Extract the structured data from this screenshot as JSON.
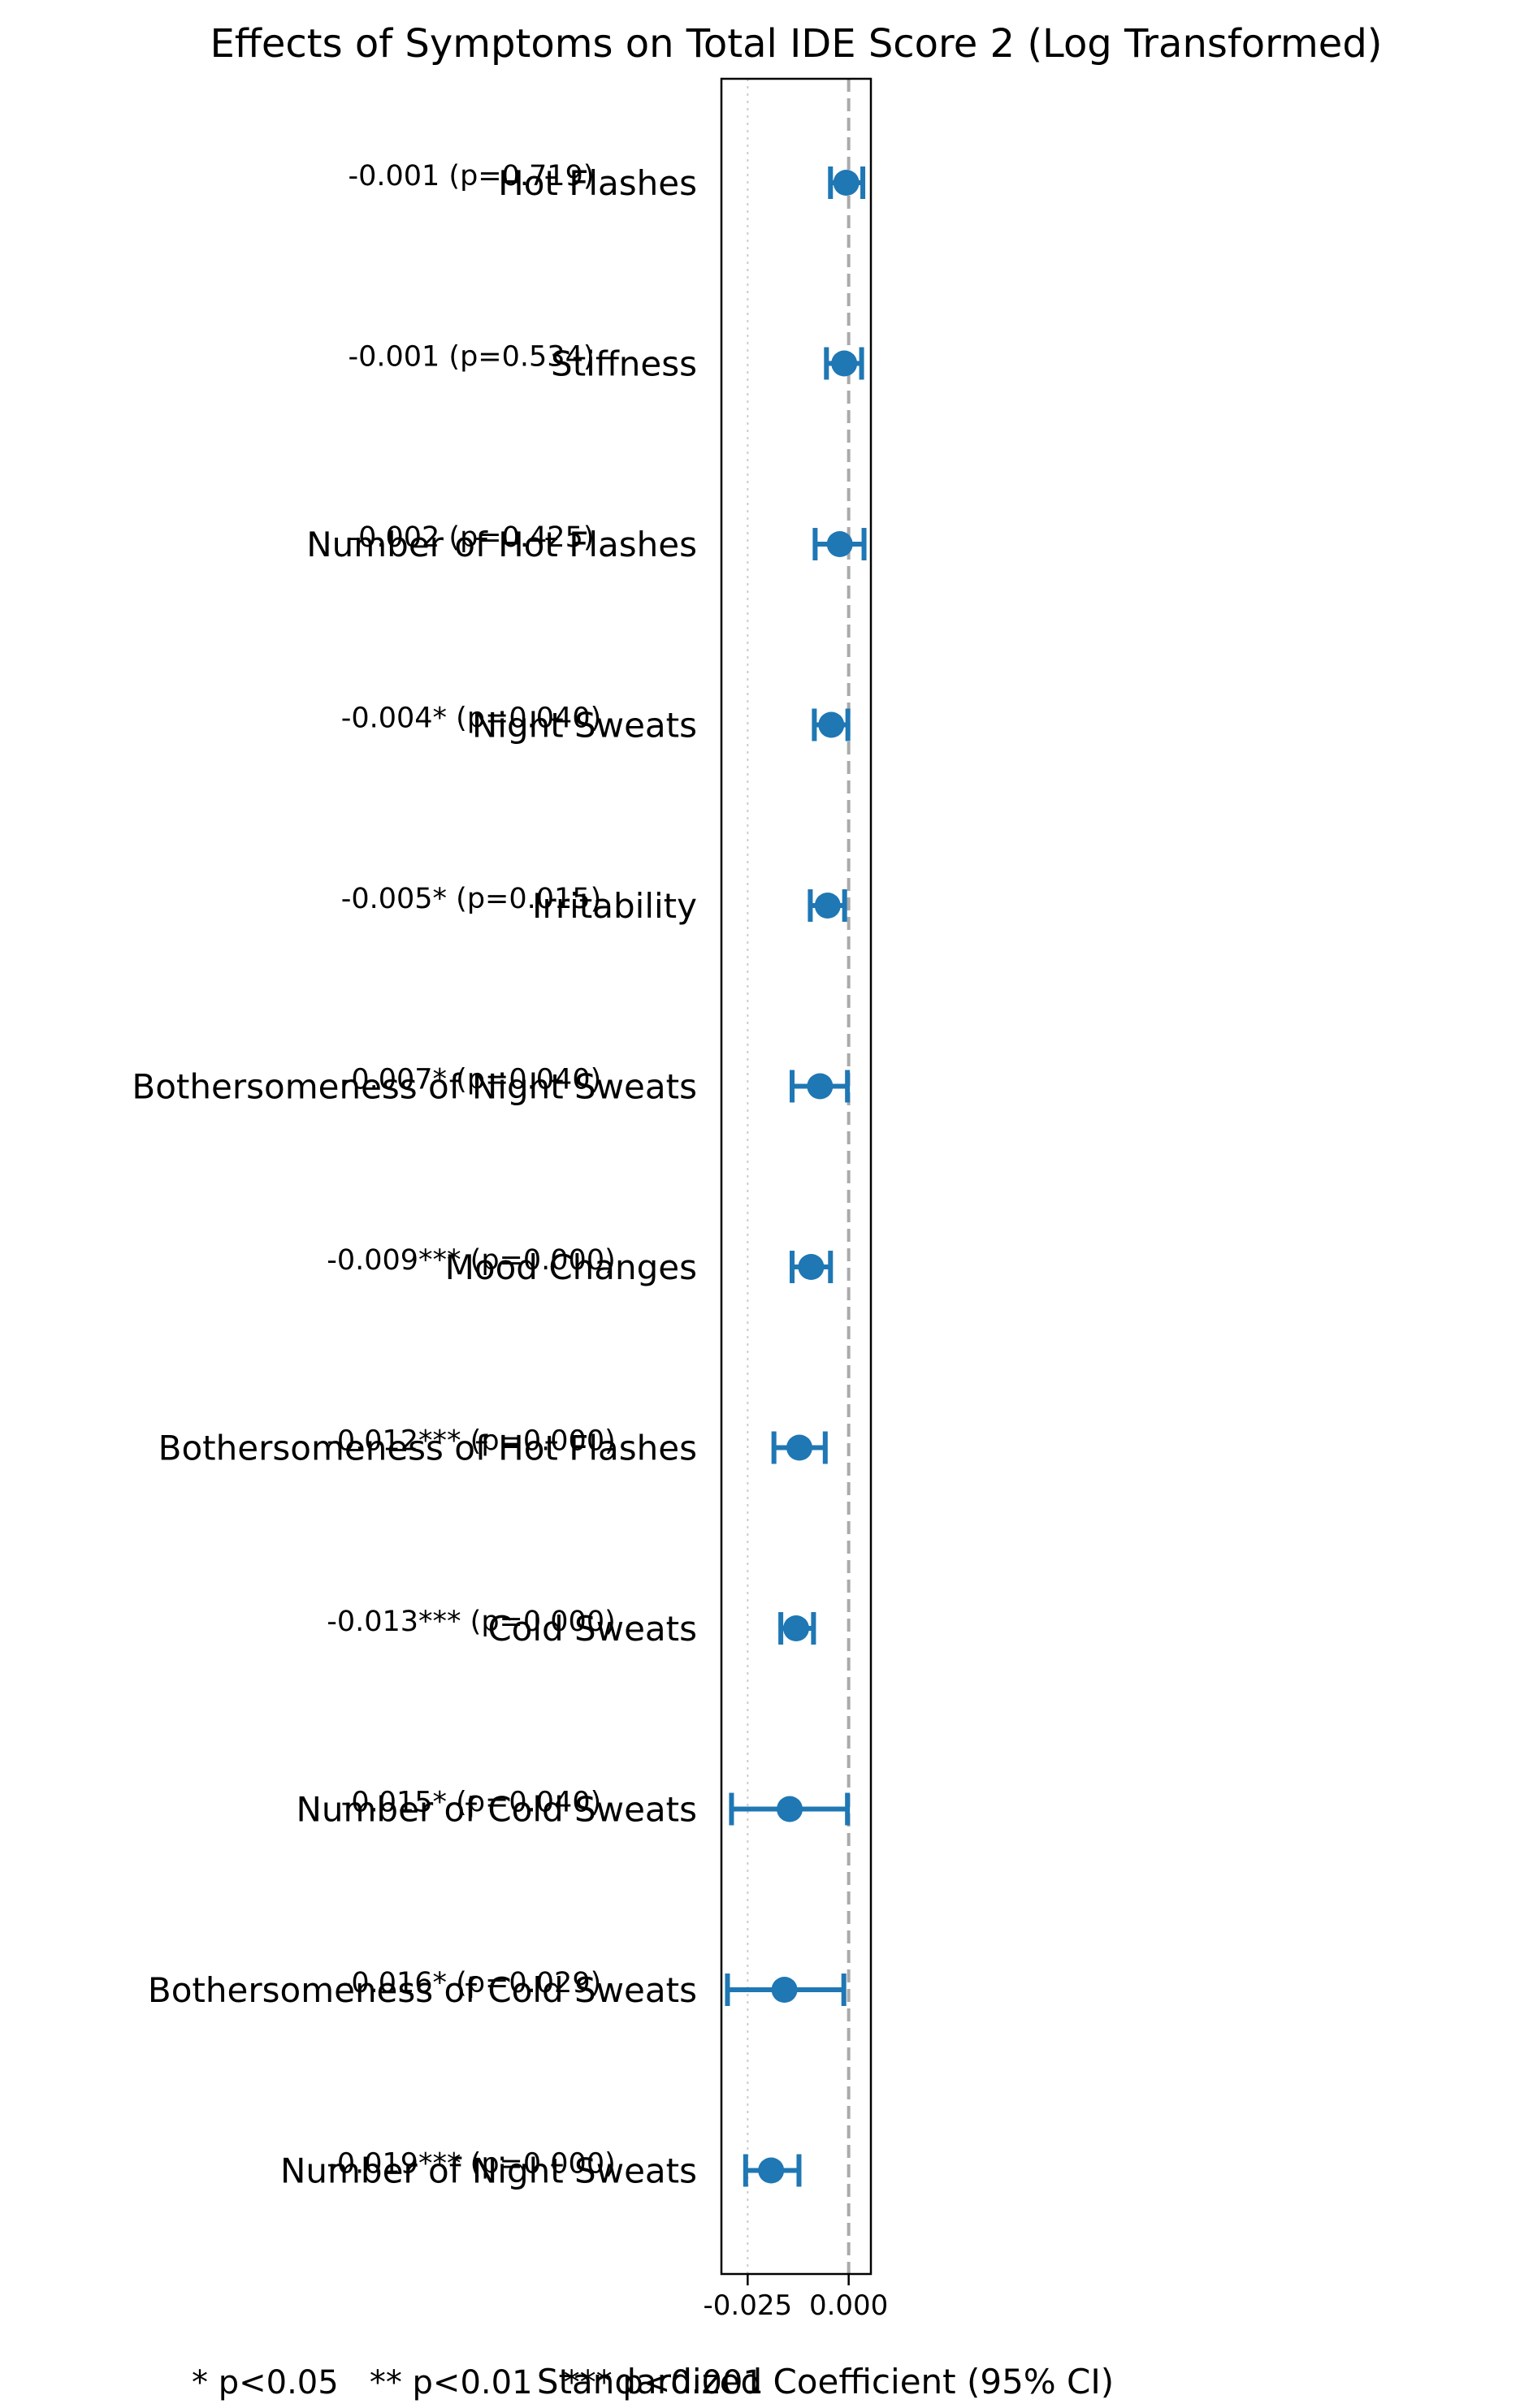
{
  "chart_data": {
    "type": "forest",
    "title": "Effects of Symptoms on Total IDE Score 2 (Log Transformed)",
    "xlabel": "Standardized Coefficient (95% CI)",
    "xticks": [
      "-0.025",
      "0.000"
    ],
    "xlim": [
      -0.0315,
      0.0055
    ],
    "reference_line": 0.0,
    "grid_line": -0.025,
    "footnote": "* p<0.05   ** p<0.01   *** p<0.001",
    "point_color": "#1f77b4",
    "rows": [
      {
        "label": "Hot Flashes",
        "estimate": -0.0006,
        "ci": [
          -0.0045,
          0.0035
        ],
        "annotation": "-0.001 (p=0.719)"
      },
      {
        "label": "Stiffness",
        "estimate": -0.0011,
        "ci": [
          -0.0055,
          0.0032
        ],
        "annotation": "-0.001 (p=0.534)"
      },
      {
        "label": "Number of Hot Flashes",
        "estimate": -0.0022,
        "ci": [
          -0.0083,
          0.0038
        ],
        "annotation": "-0.002 (p=0.425)"
      },
      {
        "label": "Night Sweats",
        "estimate": -0.0043,
        "ci": [
          -0.0085,
          -0.0002
        ],
        "annotation": "-0.004* (p=0.040)"
      },
      {
        "label": "Irritability",
        "estimate": -0.0052,
        "ci": [
          -0.0095,
          -0.001
        ],
        "annotation": "-0.005* (p=0.015)"
      },
      {
        "label": "Bothersomeness of Night Sweats",
        "estimate": -0.0071,
        "ci": [
          -0.014,
          -0.0003
        ],
        "annotation": "-0.007* (p=0.040)"
      },
      {
        "label": "Mood Changes",
        "estimate": -0.0093,
        "ci": [
          -0.014,
          -0.0045
        ],
        "annotation": "-0.009*** (p=0.000)"
      },
      {
        "label": "Bothersomeness of Hot Flashes",
        "estimate": -0.0122,
        "ci": [
          -0.0185,
          -0.0058
        ],
        "annotation": "-0.012*** (p=0.000)"
      },
      {
        "label": "Cold Sweats",
        "estimate": -0.013,
        "ci": [
          -0.0168,
          -0.0087
        ],
        "annotation": "-0.013*** (p=0.000)"
      },
      {
        "label": "Number of Cold Sweats",
        "estimate": -0.0146,
        "ci": [
          -0.029,
          -0.0003
        ],
        "annotation": "-0.015* (p=0.040)"
      },
      {
        "label": "Bothersomeness of Cold Sweats",
        "estimate": -0.0159,
        "ci": [
          -0.03,
          -0.0012
        ],
        "annotation": "-0.016* (p=0.029)"
      },
      {
        "label": "Number of Night Sweats",
        "estimate": -0.0192,
        "ci": [
          -0.0255,
          -0.0123
        ],
        "annotation": "-0.019*** (p=0.000)"
      }
    ]
  }
}
